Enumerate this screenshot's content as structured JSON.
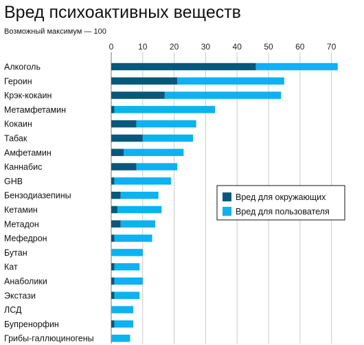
{
  "chart_data": {
    "type": "bar",
    "stacked": true,
    "orientation": "horizontal",
    "title": "Вред психоактивных веществ",
    "subtitle": "Возможный максимум — 100",
    "xlim": [
      0,
      75
    ],
    "xticks": [
      0,
      10,
      20,
      30,
      40,
      50,
      60,
      70
    ],
    "grid": true,
    "legend_position": "right",
    "categories": [
      "Алкоголь",
      "Героин",
      "Крэк-кокаин",
      "Метамфетамин",
      "Кокаин",
      "Табак",
      "Амфетамин",
      "Каннабис",
      "GHB",
      "Бензодиазепины",
      "Кетамин",
      "Метадон",
      "Мефедрон",
      "Бутан",
      "Кат",
      "Анаболики",
      "Экстази",
      "ЛСД",
      "Бупренорфин",
      "Грибы-галлюциногены"
    ],
    "series": [
      {
        "name": "Вред для окружающих",
        "color": "#07587a",
        "values": [
          46,
          21,
          17,
          1,
          8,
          10,
          4,
          8,
          1,
          3,
          2,
          3,
          1,
          0,
          1,
          1,
          1,
          0,
          1,
          0
        ]
      },
      {
        "name": "Вред для пользователя",
        "color": "#0db2f0",
        "values": [
          26,
          34,
          37,
          32,
          19,
          16,
          19,
          13,
          18,
          12,
          14,
          11,
          12,
          10,
          8,
          9,
          8,
          7,
          6,
          6
        ]
      }
    ]
  }
}
